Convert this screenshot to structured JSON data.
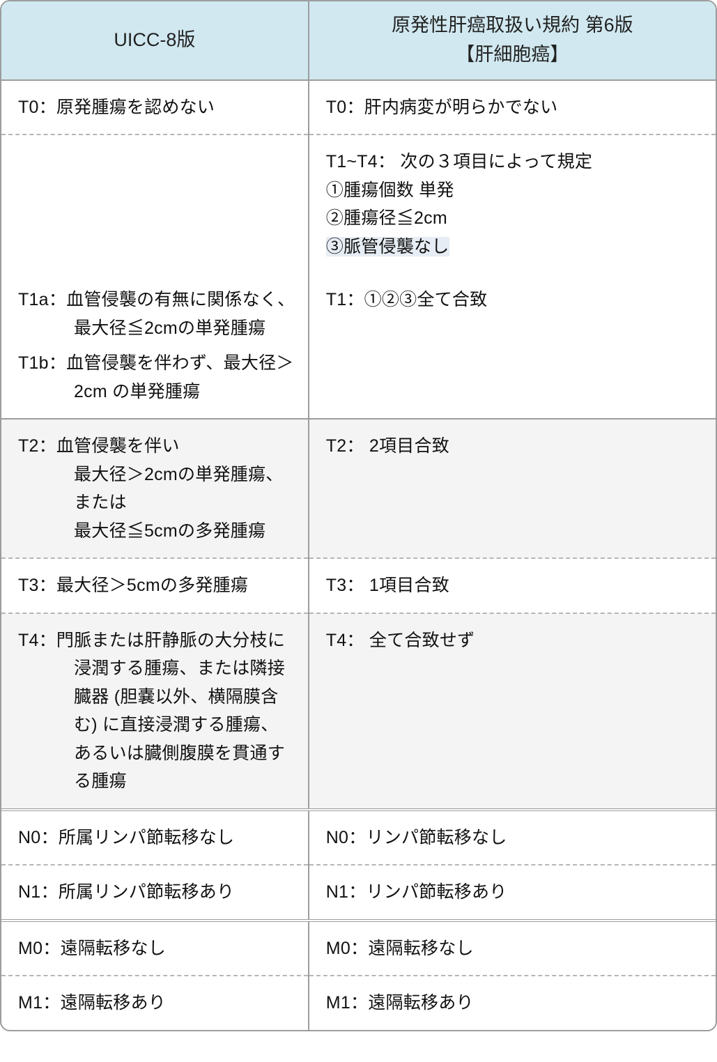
{
  "colors": {
    "header_bg": "#d1e8f0",
    "border": "#9d9d9d",
    "dashed": "#b6b6b6",
    "shade_bg": "#f4f4f4",
    "highlight_bg": "#e6edf4",
    "text": "#111111"
  },
  "typography": {
    "header_fontsize_pt": 20,
    "body_fontsize_pt": 19,
    "line_height": 1.62
  },
  "table": {
    "type": "table",
    "columns": [
      {
        "key": "uicc",
        "header": "UICC-8版",
        "width_pct": 43
      },
      {
        "key": "japan",
        "header": "原発性肝癌取扱い規約 第6版\n【肝細胞癌】",
        "width_pct": 57
      }
    ],
    "rows": [
      {
        "left": "T0：原発腫瘍を認めない",
        "right": "T0：肝内病変が明らかでない",
        "sep": "dashed",
        "shade": false
      },
      {
        "left": "",
        "right_lines": [
          "T1~T4： 次の３項目によって規定",
          "①腫瘍個数 単発",
          "②腫瘍径≦2cm",
          "③脈管侵襲なし"
        ],
        "right_highlight_idx": 3,
        "sep": "none",
        "shade": false
      },
      {
        "left_items": [
          {
            "label": "T1a：",
            "text": "血管侵襲の有無に関係なく、最大径≦2cmの単発腫瘍"
          },
          {
            "label": "T1b：",
            "text": "血管侵襲を伴わず、最大径＞2cm の単発腫瘍"
          }
        ],
        "right": "T1：①②③全て合致",
        "sep": "thick",
        "shade": false
      },
      {
        "left_items": [
          {
            "label": "T2：",
            "text": "血管侵襲を伴い\n最大径＞2cmの単発腫瘍、または\n最大径≦5cmの多発腫瘍"
          }
        ],
        "right": "T2： 2項目合致",
        "sep": "dashed",
        "shade": true
      },
      {
        "left": "T3：最大径＞5cmの多発腫瘍",
        "right": "T3： 1項目合致",
        "sep": "dashed",
        "shade": false
      },
      {
        "left_items": [
          {
            "label": "T4：",
            "text": "門脈または肝静脈の大分枝に浸潤する腫瘍、または隣接臓器 (胆嚢以外、横隔膜含む) に直接浸潤する腫瘍、あるいは臓側腹膜を貫通する腫瘍"
          }
        ],
        "right": "T4： 全て合致せず",
        "sep": "double",
        "shade": true
      },
      {
        "left": "N0：所属リンパ節転移なし",
        "right": "N0：リンパ節転移なし",
        "sep": "dashed",
        "shade": false
      },
      {
        "left": "N1：所属リンパ節転移あり",
        "right": "N1：リンパ節転移あり",
        "sep": "double",
        "shade": false
      },
      {
        "left": "M0：遠隔転移なし",
        "right": "M0：遠隔転移なし",
        "sep": "dashed",
        "shade": false
      },
      {
        "left": "M1：遠隔転移あり",
        "right": "M1：遠隔転移あり",
        "sep": "none",
        "shade": false
      }
    ]
  }
}
